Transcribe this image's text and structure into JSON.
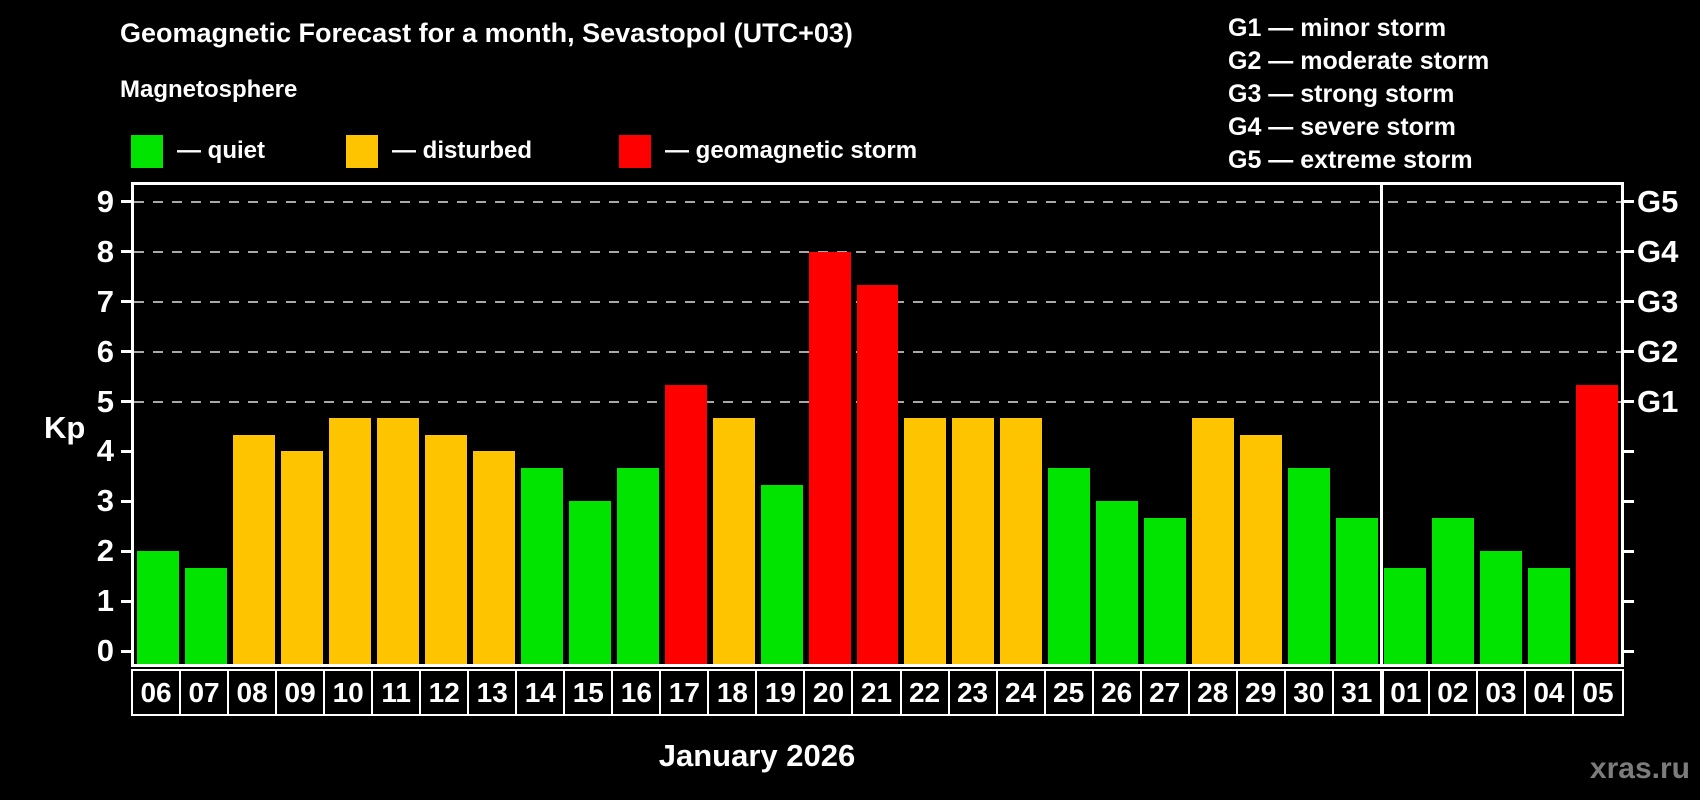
{
  "header": {
    "title": "Geomagnetic Forecast for a month, Sevastopol (UTC+03)",
    "subtitle": "Magnetosphere"
  },
  "legend": {
    "items": [
      {
        "name": "quiet",
        "label": "— quiet",
        "color": "#00e400"
      },
      {
        "name": "disturbed",
        "label": "— disturbed",
        "color": "#ffc400"
      },
      {
        "name": "storm",
        "label": "— geomagnetic storm",
        "color": "#ff0000"
      }
    ]
  },
  "g_legend": {
    "items": [
      "G1 — minor storm",
      "G2 — moderate storm",
      "G3 — strong storm",
      "G4 — severe storm",
      "G5 — extreme storm"
    ]
  },
  "axis": {
    "kp_label": "Kp",
    "month_label": "January 2026"
  },
  "watermark": "xras.ru",
  "chart_data": {
    "type": "bar",
    "title": "Geomagnetic Forecast for a month, Sevastopol (UTC+03)",
    "xlabel": "January 2026",
    "ylabel": "Kp",
    "ylim": [
      0,
      9.3
    ],
    "yticks": [
      0,
      1,
      2,
      3,
      4,
      5,
      6,
      7,
      8,
      9
    ],
    "gridlines_at": [
      5,
      6,
      7,
      8,
      9
    ],
    "grid": "dashed",
    "right_axis_labels": [
      {
        "kp": 5,
        "label": "G1"
      },
      {
        "kp": 6,
        "label": "G2"
      },
      {
        "kp": 7,
        "label": "G3"
      },
      {
        "kp": 8,
        "label": "G4"
      },
      {
        "kp": 9,
        "label": "G5"
      }
    ],
    "categories": [
      "06",
      "07",
      "08",
      "09",
      "10",
      "11",
      "12",
      "13",
      "14",
      "15",
      "16",
      "17",
      "18",
      "19",
      "20",
      "21",
      "22",
      "23",
      "24",
      "25",
      "26",
      "27",
      "28",
      "29",
      "30",
      "31",
      "01",
      "02",
      "03",
      "04",
      "05"
    ],
    "values": [
      2.0,
      1.67,
      4.33,
      4.0,
      4.67,
      4.67,
      4.33,
      4.0,
      3.67,
      3.0,
      3.67,
      5.33,
      4.67,
      3.33,
      8.0,
      7.33,
      4.67,
      4.67,
      4.67,
      3.67,
      3.0,
      2.67,
      4.67,
      4.33,
      3.67,
      2.67,
      1.67,
      2.67,
      2.0,
      1.67,
      5.33
    ],
    "statuses": [
      "quiet",
      "quiet",
      "disturbed",
      "disturbed",
      "disturbed",
      "disturbed",
      "disturbed",
      "disturbed",
      "quiet",
      "quiet",
      "quiet",
      "storm",
      "disturbed",
      "quiet",
      "storm",
      "storm",
      "disturbed",
      "disturbed",
      "disturbed",
      "quiet",
      "quiet",
      "quiet",
      "disturbed",
      "disturbed",
      "quiet",
      "quiet",
      "quiet",
      "quiet",
      "quiet",
      "quiet",
      "storm"
    ],
    "colors": {
      "quiet": "#00e400",
      "disturbed": "#ffc400",
      "storm": "#ff0000"
    },
    "month_separator_after_index": 25,
    "legend_position": "top-left"
  }
}
